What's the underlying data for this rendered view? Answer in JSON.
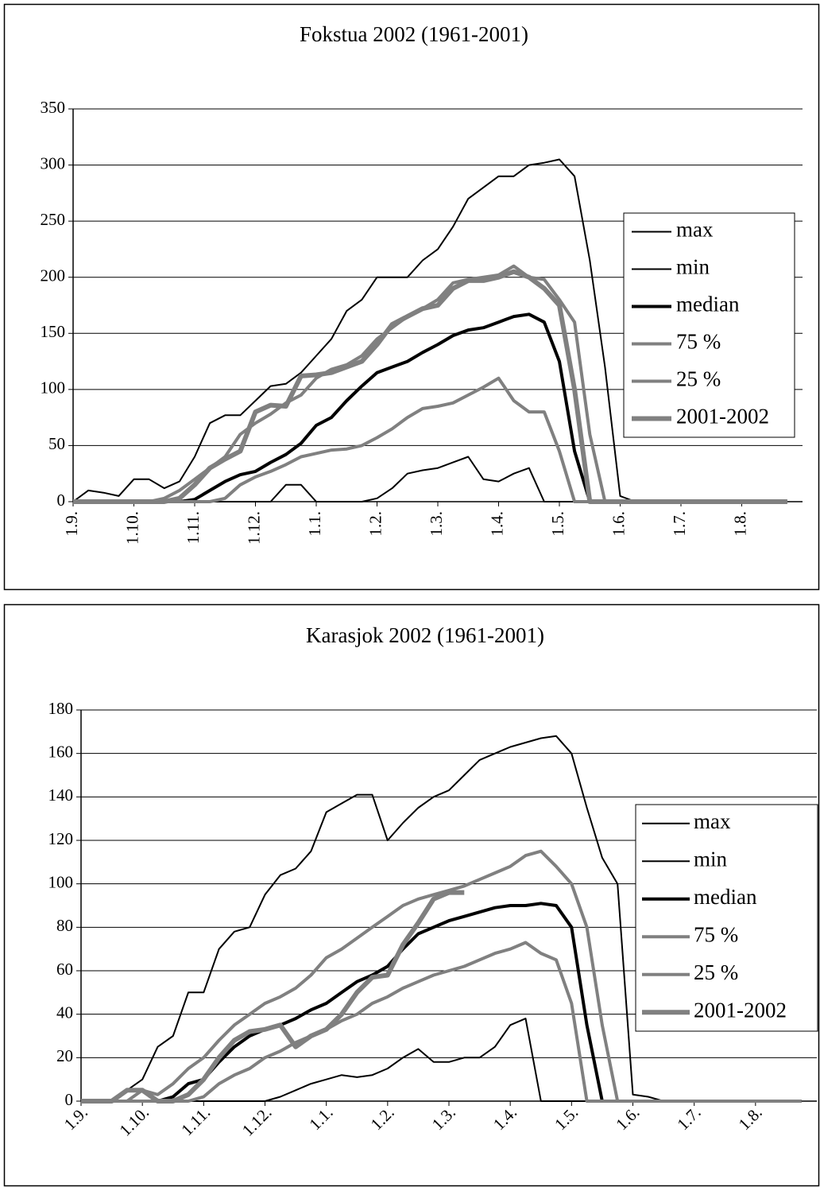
{
  "chart_data": [
    {
      "type": "line",
      "title": "Fokstua 2002  (1961-2001)",
      "categories": [
        "1.9.",
        null,
        null,
        null,
        "1.10.",
        null,
        null,
        null,
        "1.11.",
        null,
        null,
        null,
        "1.12.",
        null,
        null,
        null,
        "1.1.",
        null,
        null,
        null,
        "1.2.",
        null,
        null,
        null,
        "1.3.",
        null,
        null,
        null,
        "1.4.",
        null,
        null,
        null,
        "1.5.",
        null,
        null,
        null,
        "1.6.",
        null,
        null,
        null,
        "1.7.",
        null,
        null,
        null,
        "1.8.",
        null,
        null,
        null
      ],
      "ylim": [
        0,
        350
      ],
      "yticks": [
        0,
        50,
        100,
        150,
        200,
        250,
        300,
        350
      ],
      "grid": true,
      "legend": "right",
      "series": [
        {
          "name": "max",
          "color": "#000000",
          "line_width": 2,
          "values": [
            0,
            10,
            8,
            5,
            20,
            20,
            12,
            18,
            40,
            70,
            77,
            77,
            90,
            103,
            105,
            115,
            130,
            145,
            170,
            180,
            200,
            200,
            200,
            215,
            225,
            245,
            270,
            280,
            290,
            290,
            300,
            302,
            305,
            290,
            215,
            120,
            5,
            0,
            0,
            0,
            0,
            0,
            0,
            0,
            0,
            0,
            0,
            0
          ]
        },
        {
          "name": "min",
          "color": "#000000",
          "line_width": 2,
          "values": [
            0,
            0,
            0,
            0,
            0,
            0,
            0,
            0,
            0,
            0,
            0,
            0,
            0,
            0,
            15,
            15,
            0,
            0,
            0,
            0,
            3,
            12,
            25,
            28,
            30,
            35,
            40,
            20,
            18,
            25,
            30,
            0,
            0,
            0,
            0,
            0,
            0,
            0,
            0,
            0,
            0,
            0,
            0,
            0,
            0,
            0,
            0,
            0
          ]
        },
        {
          "name": "median",
          "color": "#000000",
          "line_width": 4,
          "values": [
            0,
            0,
            0,
            0,
            0,
            0,
            0,
            0,
            2,
            10,
            18,
            24,
            27,
            35,
            42,
            52,
            68,
            75,
            90,
            103,
            115,
            120,
            125,
            133,
            140,
            148,
            153,
            155,
            160,
            165,
            167,
            160,
            125,
            45,
            0,
            0,
            0,
            0,
            0,
            0,
            0,
            0,
            0,
            0,
            0,
            0,
            0,
            0
          ]
        },
        {
          "name": "75 %",
          "color": "#808080",
          "line_width": 4,
          "values": [
            0,
            0,
            0,
            0,
            0,
            0,
            3,
            10,
            20,
            30,
            40,
            60,
            70,
            78,
            88,
            95,
            110,
            118,
            122,
            130,
            145,
            155,
            165,
            172,
            180,
            195,
            198,
            200,
            202,
            210,
            200,
            198,
            180,
            160,
            60,
            0,
            0,
            0,
            0,
            0,
            0,
            0,
            0,
            0,
            0,
            0,
            0,
            0
          ]
        },
        {
          "name": "25 %",
          "color": "#808080",
          "line_width": 4,
          "values": [
            0,
            0,
            0,
            0,
            0,
            0,
            0,
            0,
            0,
            0,
            3,
            15,
            22,
            27,
            33,
            40,
            43,
            46,
            47,
            50,
            57,
            65,
            75,
            83,
            85,
            88,
            95,
            102,
            110,
            90,
            80,
            80,
            45,
            0,
            0,
            0,
            0,
            0,
            0,
            0,
            0,
            0,
            0,
            0,
            0,
            0,
            0,
            0
          ]
        },
        {
          "name": "2001-2002",
          "color": "#808080",
          "line_width": 6,
          "values": [
            0,
            0,
            0,
            0,
            0,
            0,
            0,
            3,
            15,
            30,
            38,
            45,
            80,
            86,
            85,
            112,
            113,
            115,
            120,
            125,
            140,
            158,
            165,
            172,
            175,
            190,
            197,
            197,
            200,
            205,
            200,
            190,
            175,
            100,
            0,
            0,
            0,
            0,
            0,
            0,
            0,
            0,
            0,
            0,
            0,
            0,
            0,
            0
          ]
        }
      ]
    },
    {
      "type": "line",
      "title": "Karasjok 2002 (1961-2001)",
      "categories": [
        "1.9.",
        null,
        null,
        null,
        "1.10.",
        null,
        null,
        null,
        "1.11.",
        null,
        null,
        null,
        "1.12.",
        null,
        null,
        null,
        "1.1.",
        null,
        null,
        null,
        "1.2.",
        null,
        null,
        null,
        "1.3.",
        null,
        null,
        null,
        "1.4.",
        null,
        null,
        null,
        "1.5.",
        null,
        null,
        null,
        "1.6.",
        null,
        null,
        null,
        "1.7.",
        null,
        null,
        null,
        "1.8.",
        null,
        null,
        null
      ],
      "ylim": [
        0,
        180
      ],
      "yticks": [
        0,
        20,
        40,
        60,
        80,
        100,
        120,
        140,
        160,
        180
      ],
      "grid": true,
      "legend": "right",
      "series": [
        {
          "name": "max",
          "color": "#000000",
          "line_width": 2,
          "values": [
            0,
            0,
            0,
            5,
            10,
            25,
            30,
            50,
            50,
            70,
            78,
            80,
            95,
            104,
            107,
            115,
            133,
            137,
            141,
            141,
            120,
            128,
            135,
            140,
            143,
            150,
            157,
            160,
            163,
            165,
            167,
            168,
            160,
            135,
            112,
            100,
            3,
            2,
            0,
            0,
            0,
            0,
            0,
            0,
            0,
            0,
            0,
            0
          ]
        },
        {
          "name": "min",
          "color": "#000000",
          "line_width": 2,
          "values": [
            0,
            0,
            0,
            0,
            0,
            0,
            0,
            0,
            0,
            0,
            0,
            0,
            0,
            2,
            5,
            8,
            10,
            12,
            11,
            12,
            15,
            20,
            24,
            18,
            18,
            20,
            20,
            25,
            35,
            38,
            0,
            0,
            0,
            0,
            0,
            0,
            0,
            0,
            0,
            0,
            0,
            0,
            0,
            0,
            0,
            0,
            0,
            0
          ]
        },
        {
          "name": "median",
          "color": "#000000",
          "line_width": 4,
          "values": [
            0,
            0,
            0,
            0,
            0,
            0,
            2,
            8,
            10,
            18,
            25,
            30,
            33,
            35,
            38,
            42,
            45,
            50,
            55,
            58,
            62,
            70,
            77,
            80,
            83,
            85,
            87,
            89,
            90,
            90,
            91,
            90,
            80,
            35,
            0,
            0,
            0,
            0,
            0,
            0,
            0,
            0,
            0,
            0,
            0,
            0,
            0,
            0
          ]
        },
        {
          "name": "75 %",
          "color": "#808080",
          "line_width": 4,
          "values": [
            0,
            0,
            0,
            0,
            5,
            3,
            8,
            15,
            20,
            28,
            35,
            40,
            45,
            48,
            52,
            58,
            66,
            70,
            75,
            80,
            85,
            90,
            93,
            95,
            97,
            99,
            102,
            105,
            108,
            113,
            115,
            108,
            100,
            80,
            35,
            0,
            0,
            0,
            0,
            0,
            0,
            0,
            0,
            0,
            0,
            0,
            0,
            0
          ]
        },
        {
          "name": "25 %",
          "color": "#808080",
          "line_width": 4,
          "values": [
            0,
            0,
            0,
            0,
            0,
            0,
            0,
            0,
            2,
            8,
            12,
            15,
            20,
            23,
            27,
            30,
            33,
            37,
            40,
            45,
            48,
            52,
            55,
            58,
            60,
            62,
            65,
            68,
            70,
            73,
            68,
            65,
            45,
            0,
            0,
            0,
            0,
            0,
            0,
            0,
            0,
            0,
            0,
            0,
            0,
            0,
            0,
            0
          ]
        },
        {
          "name": "2001-2002",
          "color": "#808080",
          "line_width": 6,
          "values": [
            0,
            0,
            0,
            5,
            5,
            0,
            0,
            3,
            10,
            20,
            28,
            32,
            33,
            35,
            25,
            30,
            33,
            40,
            50,
            57,
            58,
            72,
            82,
            93,
            96,
            96,
            null,
            null,
            null,
            null,
            null,
            null,
            null,
            null,
            null,
            null,
            null,
            null,
            null,
            null,
            null,
            null,
            null,
            null,
            null,
            null,
            null,
            null
          ]
        }
      ]
    }
  ]
}
